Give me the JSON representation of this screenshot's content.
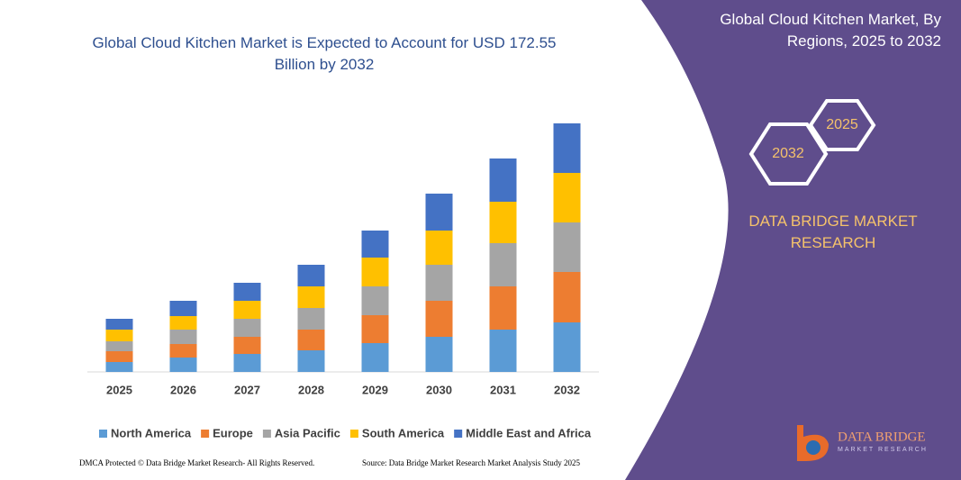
{
  "chart_data": {
    "type": "stacked_bar",
    "title": "Global Cloud Kitchen Market is Expected to Account for USD 172.55 Billion by 2032",
    "categories": [
      "2025",
      "2026",
      "2027",
      "2028",
      "2029",
      "2030",
      "2031",
      "2032"
    ],
    "series": [
      {
        "name": "North America",
        "color": "#5b9bd5",
        "values": [
          11,
          16,
          20,
          24,
          32,
          39,
          47,
          55
        ]
      },
      {
        "name": "Europe",
        "color": "#ed7d31",
        "values": [
          12,
          15,
          19,
          23,
          31,
          40,
          48,
          56
        ]
      },
      {
        "name": "Asia Pacific",
        "color": "#a5a5a5",
        "values": [
          11,
          16,
          20,
          24,
          32,
          40,
          48,
          55
        ]
      },
      {
        "name": "South America",
        "color": "#ffc000",
        "values": [
          13,
          15,
          20,
          24,
          32,
          38,
          46,
          55
        ]
      },
      {
        "name": "Middle East and Africa",
        "color": "#4472c4",
        "values": [
          12,
          17,
          20,
          24,
          30,
          41,
          48,
          55
        ]
      }
    ]
  },
  "panel": {
    "title": "Global Cloud Kitchen Market, By Regions, 2025 to 2032",
    "hex_front": "2032",
    "hex_back": "2025",
    "brand": "DATA BRIDGE MARKET RESEARCH",
    "logo_name": "DATA BRIDGE",
    "logo_sub": "MARKET RESEARCH"
  },
  "footer": {
    "left": "DMCA Protected © Data Bridge Market Research- All Rights Reserved.",
    "right": "Source: Data Bridge Market Research Market Analysis Study 2025"
  }
}
